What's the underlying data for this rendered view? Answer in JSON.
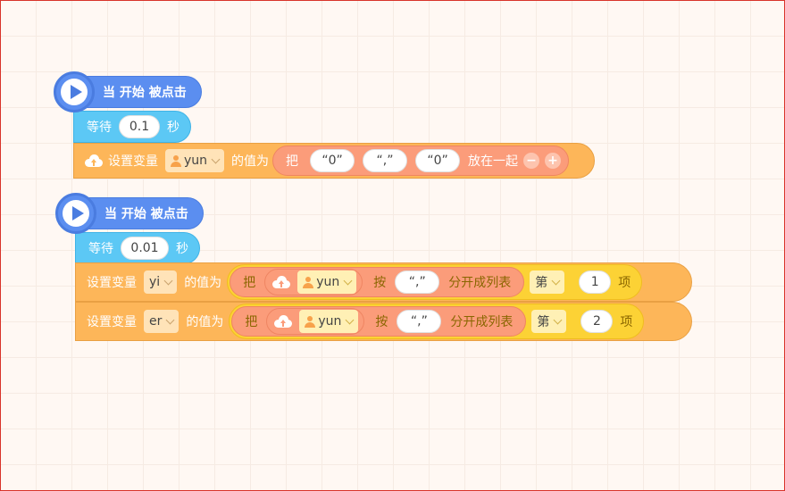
{
  "script1": {
    "hat_label": "当 开始 被点击",
    "wait": {
      "label": "等待",
      "value": "0.1",
      "unit": "秒"
    },
    "set": {
      "label": "设置变量",
      "variable": "yun",
      "value_label": "的值为",
      "join": {
        "prefix": "把",
        "items": [
          "“0”",
          "“,”",
          "“0”"
        ],
        "suffix": "放在一起",
        "minus": "−",
        "plus": "+"
      }
    }
  },
  "script2": {
    "hat_label": "当 开始 被点击",
    "wait": {
      "label": "等待",
      "value": "0.01",
      "unit": "秒"
    },
    "sets": [
      {
        "label": "设置变量",
        "variable": "yi",
        "value_label": "的值为",
        "split": {
          "prefix": "把",
          "variable": "yun",
          "by": "按",
          "separator": "“,”",
          "action": "分开成列表"
        },
        "index": {
          "prefix": "第",
          "value": "1",
          "suffix": "项"
        }
      },
      {
        "label": "设置变量",
        "variable": "er",
        "value_label": "的值为",
        "split": {
          "prefix": "把",
          "variable": "yun",
          "by": "按",
          "separator": "“,”",
          "action": "分开成列表"
        },
        "index": {
          "prefix": "第",
          "value": "2",
          "suffix": "项"
        }
      }
    ]
  }
}
